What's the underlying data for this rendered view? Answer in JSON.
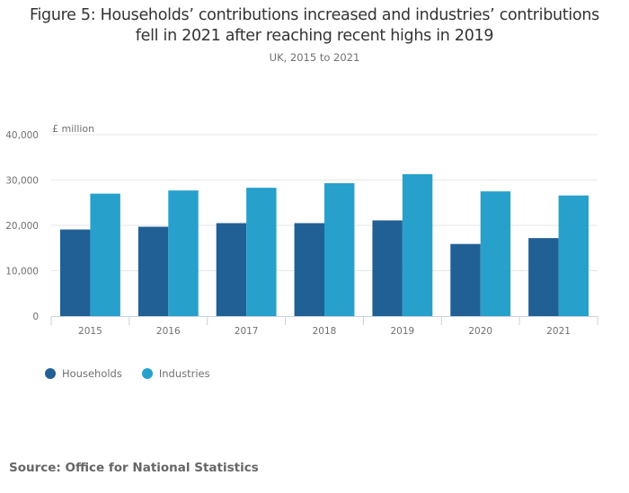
{
  "chart_data": {
    "type": "bar",
    "title": "Figure 5: Households’ contributions increased and industries’ contributions fell in 2021 after reaching recent highs in 2019",
    "title_lines": [
      "Figure 5: Households’ contributions increased and industries’ contributions",
      "fell in 2021 after reaching recent highs in 2019"
    ],
    "subtitle": "UK, 2015 to 2021",
    "xlabel": "",
    "ylabel": "£ million",
    "categories": [
      "2015",
      "2016",
      "2017",
      "2018",
      "2019",
      "2020",
      "2021"
    ],
    "series": [
      {
        "name": "Households",
        "color": "#206095",
        "values": [
          19100,
          19700,
          20500,
          20500,
          21100,
          15900,
          17200
        ]
      },
      {
        "name": "Industries",
        "color": "#27a0cc",
        "values": [
          27000,
          27700,
          28300,
          29300,
          31300,
          27500,
          26600
        ]
      }
    ],
    "ylim": [
      0,
      40000
    ],
    "yticks": [
      0,
      10000,
      20000,
      30000,
      40000
    ],
    "ytick_labels": [
      "0",
      "10,000",
      "20,000",
      "30,000",
      "40,000"
    ],
    "grid": true,
    "legend_position": "bottom-left"
  },
  "source": "Source: Office for National Statistics"
}
